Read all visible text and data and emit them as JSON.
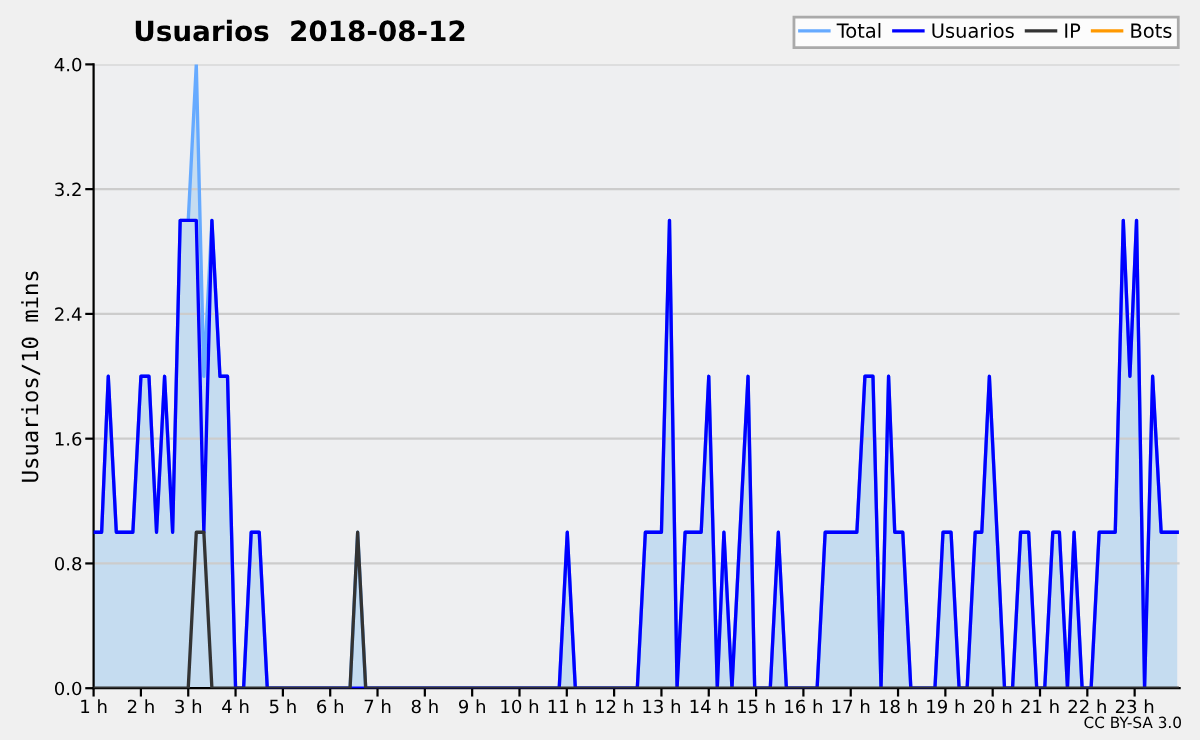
{
  "chart_data": {
    "type": "line",
    "title": "Usuarios  2018-08-12",
    "ylabel": "Usuarios/10 mins",
    "annotations": [
      "CC BY-SA 3.0"
    ],
    "x": [
      1.0,
      1.17,
      1.31,
      1.48,
      1.83,
      2.0,
      2.17,
      2.33,
      2.5,
      2.67,
      2.83,
      3.0,
      3.17,
      3.33,
      3.5,
      3.67,
      3.83,
      4.0,
      4.17,
      4.33,
      4.5,
      4.67,
      6.42,
      6.58,
      6.75,
      10.84,
      11.01,
      11.18,
      12.49,
      12.66,
      13.0,
      13.17,
      13.33,
      13.5,
      13.84,
      14.0,
      14.18,
      14.32,
      14.49,
      14.83,
      14.97,
      15.3,
      15.47,
      15.64,
      16.29,
      16.46,
      17.13,
      17.3,
      17.47,
      17.64,
      17.8,
      17.93,
      18.1,
      18.27,
      18.78,
      18.95,
      19.12,
      19.29,
      19.46,
      19.63,
      19.77,
      19.93,
      20.25,
      20.42,
      20.59,
      20.76,
      20.93,
      21.1,
      21.27,
      21.41,
      21.58,
      21.72,
      21.89,
      22.08,
      22.25,
      22.59,
      22.76,
      22.9,
      23.04,
      23.21,
      23.38,
      23.56,
      23.9
    ],
    "series": [
      {
        "name": "Total",
        "type": "area",
        "color": "#66aaff",
        "values": [
          1,
          1,
          2,
          1,
          1,
          2,
          2,
          1,
          2,
          1,
          3,
          3,
          4,
          2,
          3,
          2,
          2,
          0,
          0,
          1,
          1,
          0,
          0,
          1,
          0,
          0,
          1,
          0,
          0,
          1,
          1,
          3,
          0,
          1,
          1,
          2,
          0,
          1,
          0,
          2,
          0,
          0,
          1,
          0,
          0,
          1,
          1,
          2,
          2,
          0,
          2,
          1,
          1,
          0,
          0,
          1,
          1,
          0,
          0,
          1,
          1,
          2,
          0,
          0,
          1,
          1,
          0,
          0,
          1,
          1,
          0,
          1,
          0,
          0,
          1,
          1,
          3,
          2,
          3,
          0,
          2,
          1,
          1
        ]
      },
      {
        "name": "Usuarios",
        "color": "#0000ff",
        "values": [
          1,
          1,
          2,
          1,
          1,
          2,
          2,
          1,
          2,
          1,
          3,
          3,
          3,
          1,
          3,
          2,
          2,
          0,
          0,
          1,
          1,
          0,
          0,
          0,
          0,
          0,
          1,
          0,
          0,
          1,
          1,
          3,
          0,
          1,
          1,
          2,
          0,
          1,
          0,
          2,
          0,
          0,
          1,
          0,
          0,
          1,
          1,
          2,
          2,
          0,
          2,
          1,
          1,
          0,
          0,
          1,
          1,
          0,
          0,
          1,
          1,
          2,
          0,
          0,
          1,
          1,
          0,
          0,
          1,
          1,
          0,
          1,
          0,
          0,
          1,
          1,
          3,
          2,
          3,
          0,
          2,
          1,
          1
        ]
      },
      {
        "name": "IP",
        "color": "#333333",
        "values": [
          0,
          0,
          0,
          0,
          0,
          0,
          0,
          0,
          0,
          0,
          0,
          0,
          1,
          1,
          0,
          0,
          0,
          0,
          0,
          0,
          0,
          0,
          0,
          1,
          0,
          0,
          0,
          0,
          0,
          0,
          0,
          0,
          0,
          0,
          0,
          0,
          0,
          0,
          0,
          0,
          0,
          0,
          0,
          0,
          0,
          0,
          0,
          0,
          0,
          0,
          0,
          0,
          0,
          0,
          0,
          0,
          0,
          0,
          0,
          0,
          0,
          0,
          0,
          0,
          0,
          0,
          0,
          0,
          0,
          0,
          0,
          0,
          0,
          0,
          0,
          0,
          0,
          0,
          0,
          0,
          0,
          0,
          0
        ]
      },
      {
        "name": "Bots",
        "color": "#ff9900",
        "values": [
          null,
          null,
          null,
          null,
          null,
          null,
          null,
          null,
          null,
          null,
          null,
          null,
          null,
          null,
          null,
          null,
          null,
          null,
          null,
          null,
          null,
          null,
          null,
          null,
          null,
          null,
          null,
          null,
          null,
          null,
          null,
          null,
          null,
          null,
          null,
          null,
          null,
          null,
          null,
          null,
          null,
          null,
          null,
          null,
          null,
          null,
          null,
          null,
          null,
          null,
          null,
          null,
          null,
          null,
          null,
          null,
          null,
          null,
          null,
          null,
          null,
          null,
          null,
          null,
          null,
          null,
          null,
          null,
          null,
          null,
          null,
          null,
          null,
          null,
          null,
          null,
          null,
          null,
          null,
          null,
          null,
          null,
          null
        ]
      }
    ],
    "xlim": [
      1.0,
      23.95
    ],
    "xticks": [
      {
        "value": 1,
        "label": "1 h"
      },
      {
        "value": 2,
        "label": "2 h"
      },
      {
        "value": 3,
        "label": "3 h"
      },
      {
        "value": 4,
        "label": "4 h"
      },
      {
        "value": 5,
        "label": "5 h"
      },
      {
        "value": 6,
        "label": "6 h"
      },
      {
        "value": 7,
        "label": "7 h"
      },
      {
        "value": 8,
        "label": "8 h"
      },
      {
        "value": 9,
        "label": "9 h"
      },
      {
        "value": 10,
        "label": "10 h"
      },
      {
        "value": 11,
        "label": "11 h"
      },
      {
        "value": 12,
        "label": "12 h"
      },
      {
        "value": 13,
        "label": "13 h"
      },
      {
        "value": 14,
        "label": "14 h"
      },
      {
        "value": 15,
        "label": "15 h"
      },
      {
        "value": 16,
        "label": "16 h"
      },
      {
        "value": 17,
        "label": "17 h"
      },
      {
        "value": 18,
        "label": "18 h"
      },
      {
        "value": 19,
        "label": "19 h"
      },
      {
        "value": 20,
        "label": "20 h"
      },
      {
        "value": 21,
        "label": "21 h"
      },
      {
        "value": 22,
        "label": "22 h"
      },
      {
        "value": 23,
        "label": "23 h"
      }
    ],
    "ylim": [
      0,
      4.0
    ],
    "yticks": [
      {
        "value": 0,
        "label": "0.0"
      },
      {
        "value": 0.8,
        "label": "0.8"
      },
      {
        "value": 1.6,
        "label": "1.6"
      },
      {
        "value": 2.4,
        "label": "2.4"
      },
      {
        "value": 3.2,
        "label": "3.2"
      },
      {
        "value": 4.0,
        "label": "4.0"
      }
    ],
    "grid": "y",
    "legend": "top right",
    "marker": "none",
    "line_style": "solid"
  }
}
